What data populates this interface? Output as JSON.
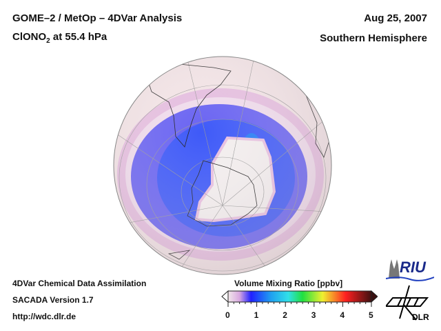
{
  "header": {
    "title_line1": "GOME–2 / MetOp – 4DVar Analysis",
    "species": "ClONO",
    "species_subscript": "2",
    "level": " at 55.4 hPa",
    "date": "Aug 25, 2007",
    "region": "Southern Hemisphere"
  },
  "footer": {
    "line1": "4DVar Chemical Data Assimilation",
    "line2": "SACADA Version 1.7",
    "line3": "http://wdc.dlr.de"
  },
  "colorbar": {
    "title": "Volume Mixing Ratio [ppbv]",
    "ticks": [
      "0",
      "1",
      "2",
      "3",
      "4",
      "5"
    ],
    "range": [
      0,
      5
    ],
    "colors": [
      "#f2e8ea",
      "#e0b0e0",
      "#2020ff",
      "#1060ff",
      "#30d0f0",
      "#20e040",
      "#f0f020",
      "#ff2020",
      "#401010"
    ]
  },
  "map": {
    "projection": "orthographic-south-polar",
    "colors": {
      "background": "#f3e6e6",
      "low": "#f2eeee",
      "band": "#5a5af5",
      "band_dark": "#1d4cf5",
      "halo": "#dca8e6"
    }
  },
  "logos": {
    "riu": "RIU",
    "dlr": "DLR"
  }
}
